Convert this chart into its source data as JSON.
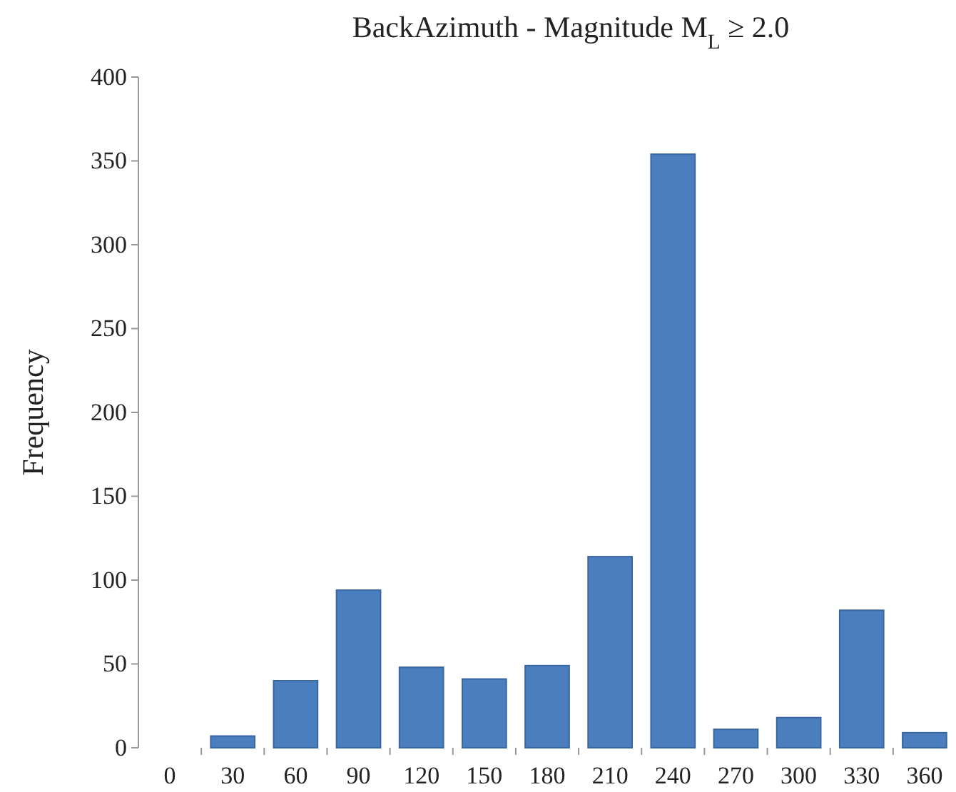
{
  "chart_data": {
    "type": "bar",
    "title": "BackAzimuth - Magnitude M$_{L}$ ≥ 2.0",
    "ylabel": "Frequency",
    "categories": [
      "0",
      "30",
      "60",
      "90",
      "120",
      "150",
      "180",
      "210",
      "240",
      "270",
      "300",
      "330",
      "360"
    ],
    "values": [
      0,
      7,
      40,
      94,
      48,
      41,
      49,
      114,
      354,
      11,
      18,
      82,
      9
    ],
    "color": "#4a7ebf",
    "ylim": [
      0,
      400
    ],
    "yticks": [
      0,
      50,
      100,
      150,
      200,
      250,
      300,
      350,
      400
    ],
    "grid": false
  }
}
